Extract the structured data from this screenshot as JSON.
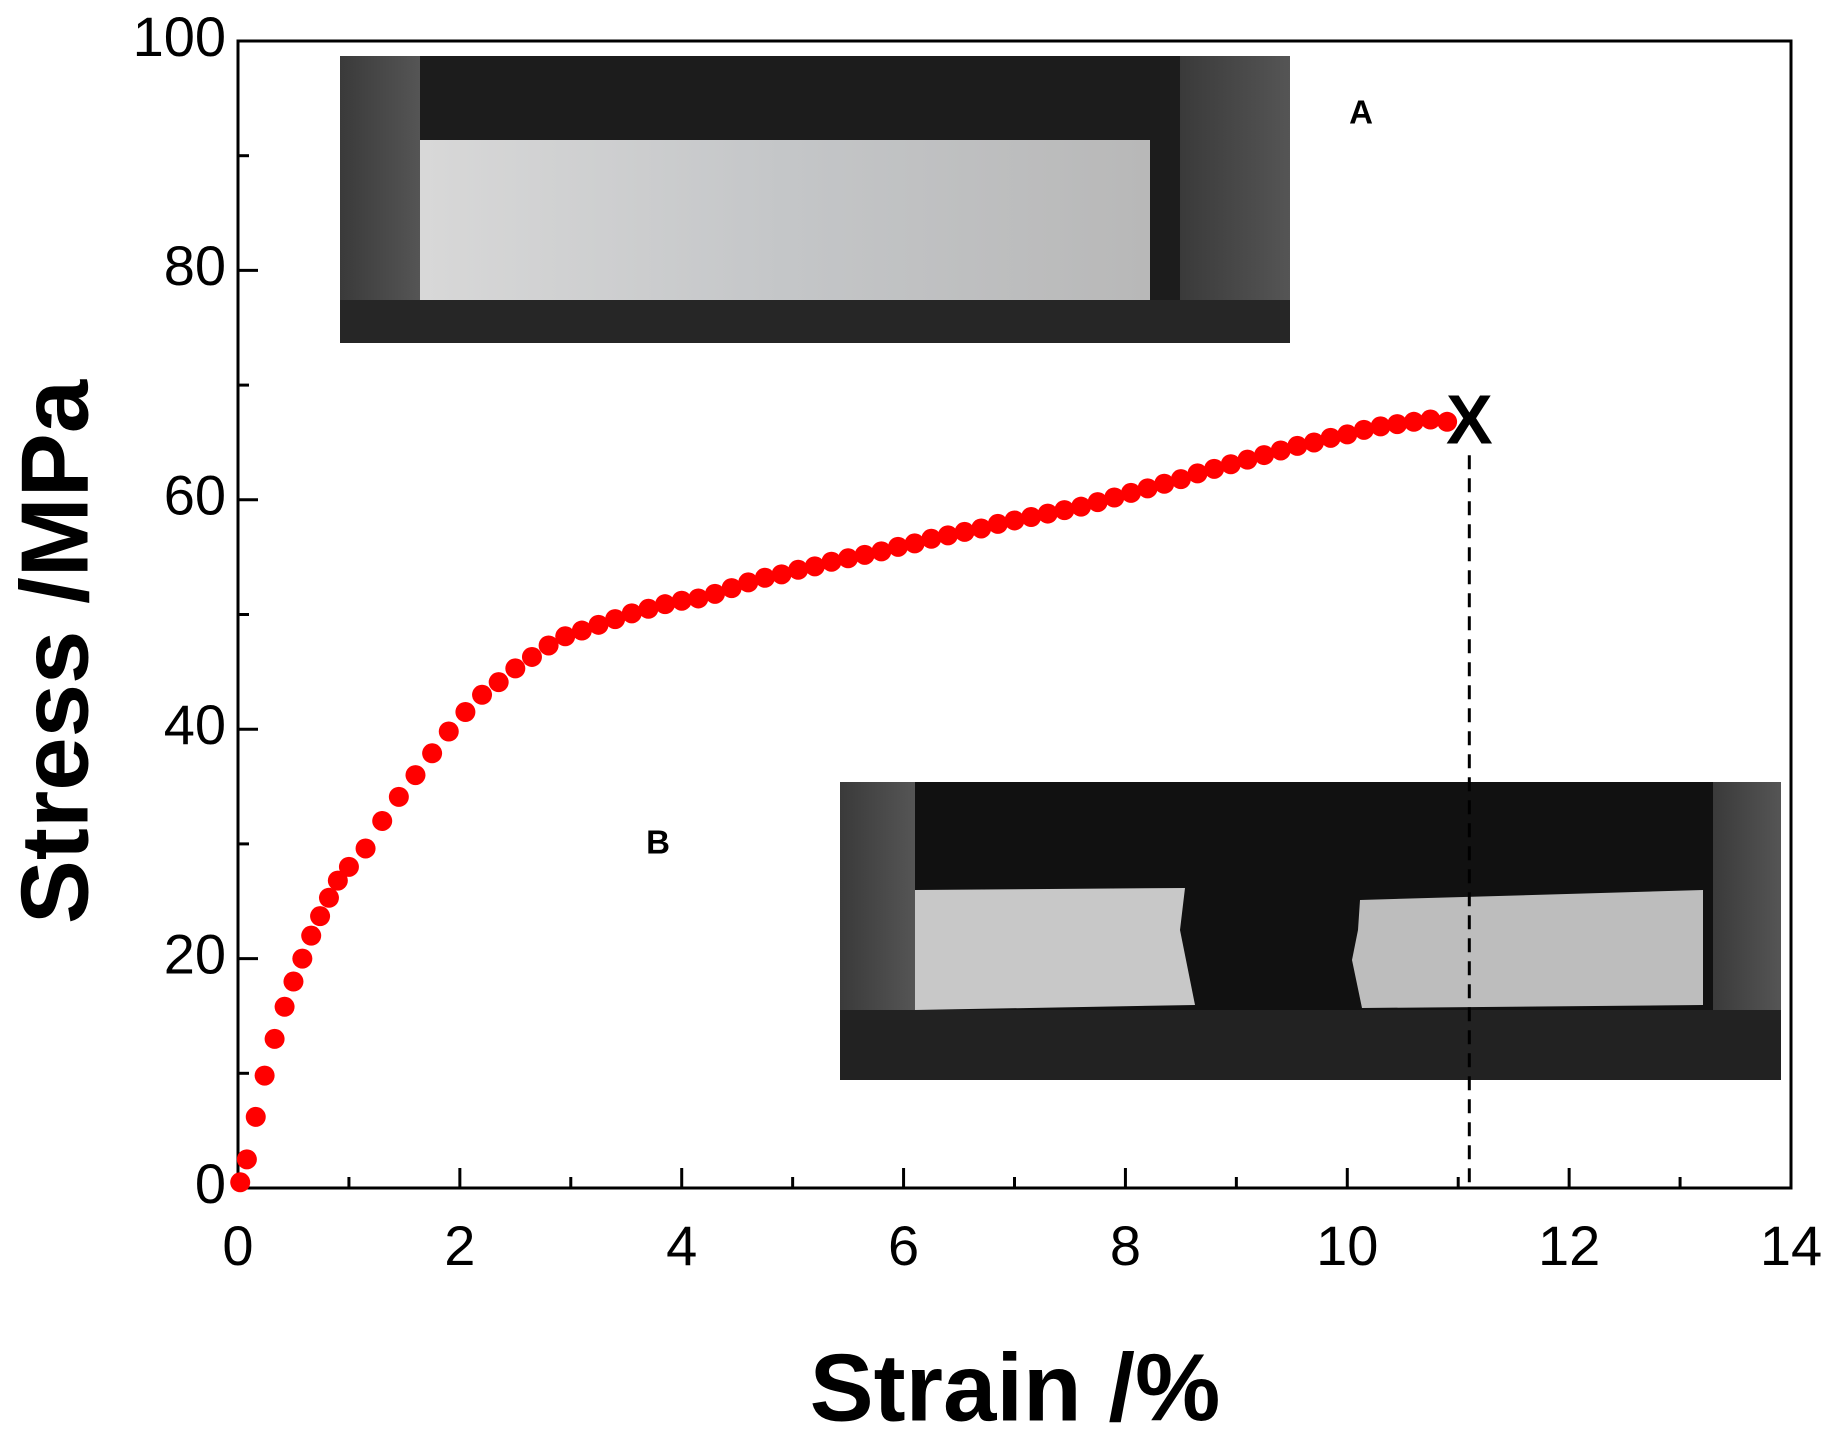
{
  "chart_data": {
    "type": "scatter",
    "x_label": "Strain /%",
    "y_label": "Stress /MPa",
    "color": "#ff0000",
    "xlim": [
      0,
      14
    ],
    "ylim": [
      0,
      100
    ],
    "xticks": [
      0,
      2,
      4,
      6,
      8,
      10,
      12,
      14
    ],
    "yticks": [
      0,
      20,
      40,
      60,
      80,
      100
    ],
    "x": [
      0.02,
      0.08,
      0.16,
      0.24,
      0.33,
      0.42,
      0.5,
      0.58,
      0.66,
      0.74,
      0.82,
      0.9,
      1.0,
      1.15,
      1.3,
      1.45,
      1.6,
      1.75,
      1.9,
      2.05,
      2.2,
      2.35,
      2.5,
      2.65,
      2.8,
      2.95,
      3.1,
      3.25,
      3.4,
      3.55,
      3.7,
      3.85,
      4.0,
      4.15,
      4.3,
      4.45,
      4.6,
      4.75,
      4.9,
      5.05,
      5.2,
      5.35,
      5.5,
      5.65,
      5.8,
      5.95,
      6.1,
      6.25,
      6.4,
      6.55,
      6.7,
      6.85,
      7.0,
      7.15,
      7.3,
      7.45,
      7.6,
      7.75,
      7.9,
      8.05,
      8.2,
      8.35,
      8.5,
      8.65,
      8.8,
      8.95,
      9.1,
      9.25,
      9.4,
      9.55,
      9.7,
      9.85,
      10.0,
      10.15,
      10.3,
      10.45,
      10.6,
      10.75,
      10.9
    ],
    "values": [
      0.5,
      2.5,
      6.2,
      9.8,
      13,
      15.8,
      18,
      20,
      22,
      23.7,
      25.3,
      26.8,
      28,
      29.6,
      32,
      34.1,
      36,
      37.9,
      39.8,
      41.5,
      43,
      44.1,
      45.3,
      46.3,
      47.3,
      48.1,
      48.6,
      49.1,
      49.6,
      50.1,
      50.5,
      50.9,
      51.2,
      51.4,
      51.8,
      52.3,
      52.8,
      53.2,
      53.5,
      53.9,
      54.2,
      54.6,
      54.9,
      55.2,
      55.5,
      55.9,
      56.2,
      56.6,
      56.9,
      57.2,
      57.5,
      57.9,
      58.2,
      58.5,
      58.8,
      59.1,
      59.4,
      59.8,
      60.2,
      60.6,
      61,
      61.4,
      61.8,
      62.3,
      62.7,
      63.1,
      63.5,
      63.9,
      64.3,
      64.7,
      65,
      65.4,
      65.7,
      66.1,
      66.4,
      66.6,
      66.8,
      67,
      66.8
    ],
    "annotations": [
      {
        "text": "X",
        "x": 11.1,
        "y": 66.5
      }
    ],
    "insets": [
      {
        "label": "A"
      },
      {
        "label": "B"
      }
    ]
  }
}
